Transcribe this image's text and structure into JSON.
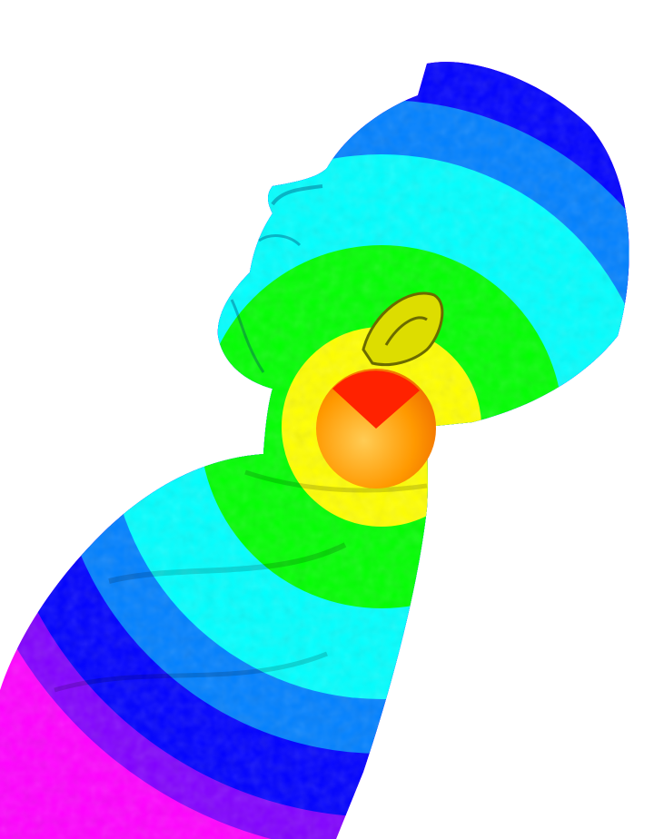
{
  "scene": {
    "background": "#ffffff",
    "subject": "3d-scanned-bust-mesh",
    "colormap": [
      "#ff0000",
      "#ff9900",
      "#ffff00",
      "#00ff00",
      "#00ffff",
      "#0080ff",
      "#0000ff",
      "#8000ff",
      "#ff00ff"
    ],
    "marker_color": "#ff2200"
  }
}
